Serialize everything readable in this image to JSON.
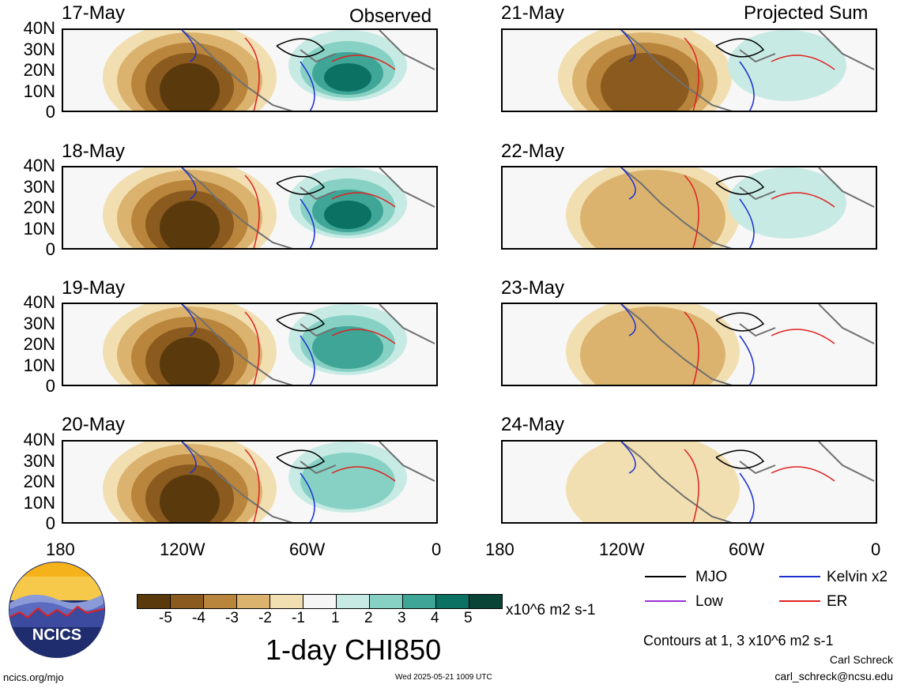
{
  "headers": {
    "left": "Observed",
    "right": "Projected Sum"
  },
  "panels": [
    {
      "date": "17-May"
    },
    {
      "date": "18-May"
    },
    {
      "date": "19-May"
    },
    {
      "date": "20-May"
    },
    {
      "date": "21-May"
    },
    {
      "date": "22-May"
    },
    {
      "date": "23-May"
    },
    {
      "date": "24-May"
    }
  ],
  "lat_labels": [
    "40N",
    "30N",
    "20N",
    "10N",
    "0"
  ],
  "lon_labels": [
    "180",
    "120W",
    "60W",
    "0"
  ],
  "colorbar": {
    "ticks": [
      "-5",
      "-4",
      "-3",
      "-2",
      "-1",
      "1",
      "2",
      "3",
      "4",
      "5"
    ],
    "colors": [
      "#5a3a0c",
      "#8a5a1e",
      "#b9843b",
      "#dbb36f",
      "#f2dfb1",
      "#f5f5f5",
      "#c7ebe4",
      "#87d1c4",
      "#3fa596",
      "#0b7263",
      "#0a4437"
    ],
    "units": "x10^6 m2 s-1",
    "title": "1-day CHI850"
  },
  "legend": [
    {
      "label": "MJO",
      "color": "#000000"
    },
    {
      "label": "Kelvin x2",
      "color": "#1a2fd6"
    },
    {
      "label": "Low",
      "color": "#9b2fd6"
    },
    {
      "label": "ER",
      "color": "#e02020"
    }
  ],
  "contour_note": "Contours at 1, 3 x10^6 m2 s-1",
  "author": "Carl Schreck",
  "email": "carl_schreck@ncsu.edu",
  "website": "ncics.org/mjo",
  "timestamp": "Wed 2025-05-21 1009 UTC",
  "logo_text": "NCICS"
}
